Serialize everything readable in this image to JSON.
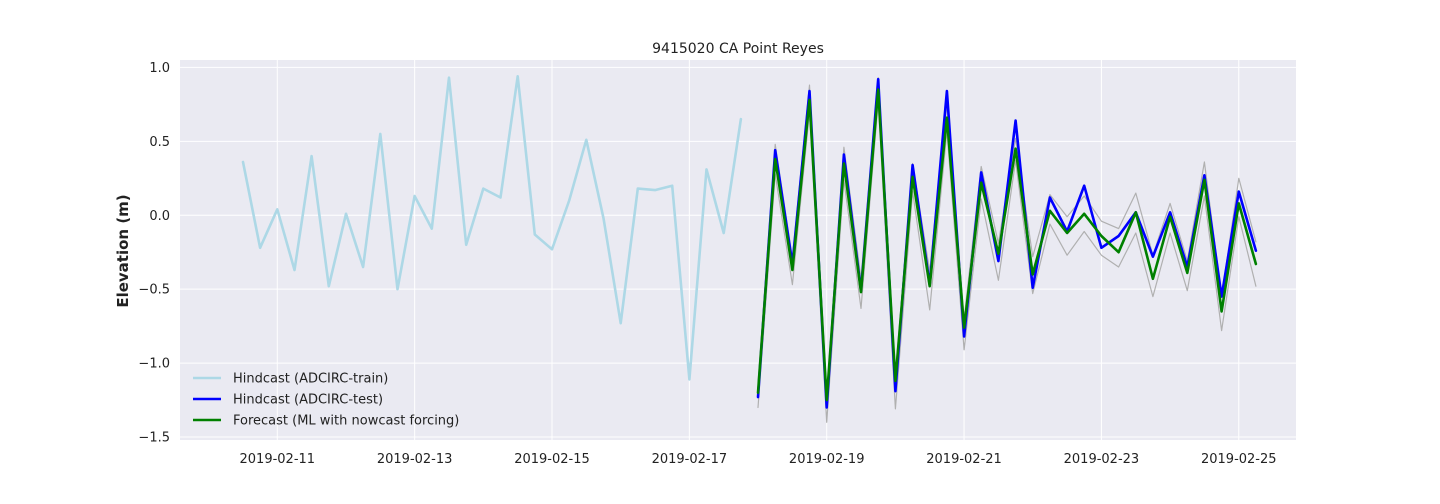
{
  "chart_data": {
    "type": "line",
    "title": "9415020 CA Point Reyes",
    "xlabel": "",
    "ylabel": "Elevation (m)",
    "xlim": [
      "2019-02-09T14:00",
      "2019-02-25T20:00"
    ],
    "ylim": [
      -1.52,
      1.05
    ],
    "grid": true,
    "legend_position": "lower-left",
    "x_ticks": [
      "2019-02-11",
      "2019-02-13",
      "2019-02-15",
      "2019-02-17",
      "2019-02-19",
      "2019-02-21",
      "2019-02-23",
      "2019-02-25"
    ],
    "y_ticks": [
      1.0,
      0.5,
      0.0,
      -0.5,
      -1.0,
      -1.5
    ],
    "y_tick_labels": [
      "1.0",
      "0.5",
      "0.0",
      "−0.5",
      "−1.0",
      "−1.5"
    ],
    "series": [
      {
        "name": "Hindcast (ADCIRC-train)",
        "color": "#add8e6",
        "x": [
          "2019-02-10T12:00",
          "2019-02-10T18:00",
          "2019-02-11T00:00",
          "2019-02-11T06:00",
          "2019-02-11T12:00",
          "2019-02-11T18:00",
          "2019-02-12T00:00",
          "2019-02-12T06:00",
          "2019-02-12T12:00",
          "2019-02-12T18:00",
          "2019-02-13T00:00",
          "2019-02-13T06:00",
          "2019-02-13T12:00",
          "2019-02-13T18:00",
          "2019-02-14T00:00",
          "2019-02-14T06:00",
          "2019-02-14T12:00",
          "2019-02-14T18:00",
          "2019-02-15T00:00",
          "2019-02-15T06:00",
          "2019-02-15T12:00",
          "2019-02-15T18:00",
          "2019-02-16T00:00",
          "2019-02-16T06:00",
          "2019-02-16T12:00",
          "2019-02-16T18:00",
          "2019-02-17T00:00",
          "2019-02-17T06:00",
          "2019-02-17T12:00",
          "2019-02-17T18:00"
        ],
        "y": [
          0.36,
          -0.22,
          0.04,
          -0.37,
          0.4,
          -0.48,
          0.01,
          -0.35,
          0.55,
          -0.5,
          0.13,
          -0.09,
          0.93,
          -0.2,
          0.18,
          0.12,
          0.94,
          -0.13,
          -0.23,
          0.1,
          0.51,
          -0.02,
          -0.73,
          0.18,
          0.17,
          0.2,
          -1.11,
          0.31,
          -0.12,
          0.65
        ]
      },
      {
        "name": "Hindcast (ADCIRC-test)",
        "color": "#0000ff",
        "x": [
          "2019-02-18T00:00",
          "2019-02-18T06:00",
          "2019-02-18T12:00",
          "2019-02-18T18:00",
          "2019-02-19T00:00",
          "2019-02-19T06:00",
          "2019-02-19T12:00",
          "2019-02-19T18:00",
          "2019-02-20T00:00",
          "2019-02-20T06:00",
          "2019-02-20T12:00",
          "2019-02-20T18:00",
          "2019-02-21T00:00",
          "2019-02-21T06:00",
          "2019-02-21T12:00",
          "2019-02-21T18:00",
          "2019-02-22T00:00",
          "2019-02-22T06:00",
          "2019-02-22T12:00",
          "2019-02-22T18:00",
          "2019-02-23T00:00",
          "2019-02-23T06:00",
          "2019-02-23T12:00",
          "2019-02-23T18:00",
          "2019-02-24T00:00",
          "2019-02-24T06:00",
          "2019-02-24T12:00",
          "2019-02-24T18:00",
          "2019-02-25T00:00",
          "2019-02-25T06:00"
        ],
        "y": [
          -1.23,
          0.44,
          -0.33,
          0.84,
          -1.3,
          0.41,
          -0.51,
          0.92,
          -1.19,
          0.34,
          -0.47,
          0.84,
          -0.82,
          0.29,
          -0.31,
          0.64,
          -0.49,
          0.12,
          -0.11,
          0.2,
          -0.22,
          -0.14,
          0.02,
          -0.28,
          0.02,
          -0.35,
          0.27,
          -0.55,
          0.16,
          -0.24
        ]
      },
      {
        "name": "Forecast (ML with nowcast forcing)",
        "color": "#008000",
        "x": [
          "2019-02-18T00:00",
          "2019-02-18T06:00",
          "2019-02-18T12:00",
          "2019-02-18T18:00",
          "2019-02-19T00:00",
          "2019-02-19T06:00",
          "2019-02-19T12:00",
          "2019-02-19T18:00",
          "2019-02-20T00:00",
          "2019-02-20T06:00",
          "2019-02-20T12:00",
          "2019-02-20T18:00",
          "2019-02-21T00:00",
          "2019-02-21T06:00",
          "2019-02-21T12:00",
          "2019-02-21T18:00",
          "2019-02-22T00:00",
          "2019-02-22T06:00",
          "2019-02-22T12:00",
          "2019-02-22T18:00",
          "2019-02-23T00:00",
          "2019-02-23T06:00",
          "2019-02-23T12:00",
          "2019-02-23T18:00",
          "2019-02-24T00:00",
          "2019-02-24T06:00",
          "2019-02-24T12:00",
          "2019-02-24T18:00",
          "2019-02-25T00:00",
          "2019-02-25T06:00"
        ],
        "y": [
          -1.2,
          0.38,
          -0.37,
          0.78,
          -1.25,
          0.35,
          -0.52,
          0.85,
          -1.12,
          0.26,
          -0.48,
          0.66,
          -0.76,
          0.22,
          -0.26,
          0.45,
          -0.4,
          0.03,
          -0.12,
          0.01,
          -0.14,
          -0.25,
          0.02,
          -0.43,
          -0.01,
          -0.39,
          0.24,
          -0.65,
          0.08,
          -0.33
        ]
      },
      {
        "color": "#b0b0b0",
        "x": [
          "2019-02-18T00:00",
          "2019-02-18T06:00",
          "2019-02-18T12:00",
          "2019-02-18T18:00",
          "2019-02-19T00:00",
          "2019-02-19T06:00",
          "2019-02-19T12:00",
          "2019-02-19T18:00",
          "2019-02-20T00:00",
          "2019-02-20T06:00",
          "2019-02-20T12:00",
          "2019-02-20T18:00",
          "2019-02-21T00:00",
          "2019-02-21T06:00",
          "2019-02-21T12:00",
          "2019-02-21T18:00",
          "2019-02-22T00:00",
          "2019-02-22T06:00",
          "2019-02-22T12:00",
          "2019-02-22T18:00",
          "2019-02-23T00:00",
          "2019-02-23T06:00",
          "2019-02-23T12:00",
          "2019-02-23T18:00",
          "2019-02-24T00:00",
          "2019-02-24T06:00",
          "2019-02-24T12:00",
          "2019-02-24T18:00",
          "2019-02-25T00:00",
          "2019-02-25T06:00"
        ],
        "y": [
          -1.13,
          0.48,
          -0.29,
          0.88,
          -1.26,
          0.46,
          -0.43,
          0.93,
          -1.08,
          0.35,
          -0.38,
          0.75,
          -0.7,
          0.33,
          -0.19,
          0.52,
          -0.28,
          0.14,
          -0.01,
          0.13,
          -0.04,
          -0.09,
          0.15,
          -0.27,
          0.08,
          -0.31,
          0.36,
          -0.55,
          0.25,
          -0.18
        ]
      },
      {
        "color": "#b0b0b0",
        "x": [
          "2019-02-18T00:00",
          "2019-02-18T06:00",
          "2019-02-18T12:00",
          "2019-02-18T18:00",
          "2019-02-19T00:00",
          "2019-02-19T06:00",
          "2019-02-19T12:00",
          "2019-02-19T18:00",
          "2019-02-20T00:00",
          "2019-02-20T06:00",
          "2019-02-20T12:00",
          "2019-02-20T18:00",
          "2019-02-21T00:00",
          "2019-02-21T06:00",
          "2019-02-21T12:00",
          "2019-02-21T18:00",
          "2019-02-22T00:00",
          "2019-02-22T06:00",
          "2019-02-22T12:00",
          "2019-02-22T18:00",
          "2019-02-23T00:00",
          "2019-02-23T06:00",
          "2019-02-23T12:00",
          "2019-02-23T18:00",
          "2019-02-24T00:00",
          "2019-02-24T06:00",
          "2019-02-24T12:00",
          "2019-02-24T18:00",
          "2019-02-25T00:00",
          "2019-02-25T06:00"
        ],
        "y": [
          -1.3,
          0.28,
          -0.47,
          0.7,
          -1.4,
          0.24,
          -0.63,
          0.77,
          -1.31,
          0.16,
          -0.64,
          0.57,
          -0.91,
          0.11,
          -0.44,
          0.37,
          -0.53,
          -0.06,
          -0.27,
          -0.11,
          -0.27,
          -0.35,
          -0.12,
          -0.55,
          -0.12,
          -0.51,
          0.13,
          -0.78,
          -0.01,
          -0.48
        ]
      }
    ],
    "legend": [
      "Hindcast (ADCIRC-train)",
      "Hindcast (ADCIRC-test)",
      "Forecast (ML with nowcast forcing)"
    ]
  }
}
